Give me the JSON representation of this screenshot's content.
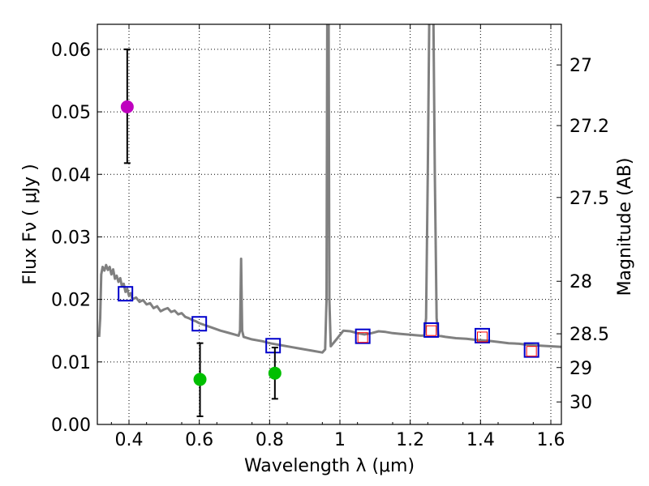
{
  "chart_data": {
    "type": "scatter",
    "xlabel": "Wavelength  λ (μm)",
    "ylabel": "Flux  Fν  ( μJy )",
    "ylabel_right": "Magnitude (AB)",
    "xlim": [
      0.31,
      1.63
    ],
    "ylim": [
      0.0,
      0.064
    ],
    "x_ticks": [
      0.4,
      0.6,
      0.8,
      1.0,
      1.2,
      1.4,
      1.6
    ],
    "x_tick_labels": [
      "0.4",
      "0.6",
      "0.8",
      "1",
      "1.2",
      "1.4",
      "1.6"
    ],
    "y_ticks": [
      0.0,
      0.01,
      0.02,
      0.03,
      0.04,
      0.05,
      0.06
    ],
    "y_tick_labels": [
      "0.00",
      "0.01",
      "0.02",
      "0.03",
      "0.04",
      "0.05",
      "0.06"
    ],
    "right_ticks": [
      {
        "label": "27",
        "flux": 0.0575
      },
      {
        "label": "27.2",
        "flux": 0.0478
      },
      {
        "label": "27.5",
        "flux": 0.0363
      },
      {
        "label": "28",
        "flux": 0.0229
      },
      {
        "label": "28.5",
        "flux": 0.0145
      },
      {
        "label": "29",
        "flux": 0.0091
      },
      {
        "label": "30",
        "flux": 0.0036
      }
    ],
    "grid": true,
    "colors": {
      "template": "#808080",
      "magenta": "#bf00bf",
      "green": "#00bf00",
      "blue": "#0000cc",
      "red": "#ff0000",
      "errorbar": "#000000"
    },
    "template_spectrum": {
      "name": "model SED",
      "points": [
        [
          0.315,
          0.014
        ],
        [
          0.318,
          0.017
        ],
        [
          0.321,
          0.024
        ],
        [
          0.325,
          0.0252
        ],
        [
          0.33,
          0.0246
        ],
        [
          0.335,
          0.0255
        ],
        [
          0.34,
          0.0247
        ],
        [
          0.345,
          0.0252
        ],
        [
          0.35,
          0.024
        ],
        [
          0.355,
          0.0248
        ],
        [
          0.36,
          0.0233
        ],
        [
          0.365,
          0.0238
        ],
        [
          0.37,
          0.0228
        ],
        [
          0.375,
          0.0234
        ],
        [
          0.38,
          0.0221
        ],
        [
          0.385,
          0.0225
        ],
        [
          0.39,
          0.0212
        ],
        [
          0.395,
          0.0217
        ],
        [
          0.4,
          0.0206
        ],
        [
          0.405,
          0.021
        ],
        [
          0.41,
          0.02
        ],
        [
          0.42,
          0.0203
        ],
        [
          0.43,
          0.0196
        ],
        [
          0.44,
          0.0199
        ],
        [
          0.45,
          0.0192
        ],
        [
          0.46,
          0.0194
        ],
        [
          0.47,
          0.0186
        ],
        [
          0.48,
          0.0189
        ],
        [
          0.49,
          0.0181
        ],
        [
          0.5,
          0.0184
        ],
        [
          0.51,
          0.0186
        ],
        [
          0.52,
          0.018
        ],
        [
          0.53,
          0.0182
        ],
        [
          0.54,
          0.0176
        ],
        [
          0.55,
          0.0178
        ],
        [
          0.56,
          0.0172
        ],
        [
          0.57,
          0.017
        ],
        [
          0.58,
          0.0167
        ],
        [
          0.59,
          0.0165
        ],
        [
          0.6,
          0.0162
        ],
        [
          0.62,
          0.0158
        ],
        [
          0.64,
          0.0154
        ],
        [
          0.66,
          0.015
        ],
        [
          0.68,
          0.0147
        ],
        [
          0.7,
          0.0144
        ],
        [
          0.712,
          0.0142
        ],
        [
          0.716,
          0.015
        ],
        [
          0.719,
          0.0265
        ],
        [
          0.722,
          0.015
        ],
        [
          0.726,
          0.014
        ],
        [
          0.75,
          0.0136
        ],
        [
          0.78,
          0.0133
        ],
        [
          0.8,
          0.013
        ],
        [
          0.83,
          0.0127
        ],
        [
          0.86,
          0.0124
        ],
        [
          0.89,
          0.0121
        ],
        [
          0.92,
          0.0118
        ],
        [
          0.95,
          0.0115
        ],
        [
          0.958,
          0.012
        ],
        [
          0.962,
          0.02
        ],
        [
          0.964,
          0.0645
        ],
        [
          0.968,
          0.0645
        ],
        [
          0.97,
          0.02
        ],
        [
          0.974,
          0.0125
        ],
        [
          0.99,
          0.0136
        ],
        [
          1.01,
          0.015
        ],
        [
          1.03,
          0.0149
        ],
        [
          1.05,
          0.0146
        ],
        [
          1.07,
          0.0144
        ],
        [
          1.09,
          0.0146
        ],
        [
          1.11,
          0.0149
        ],
        [
          1.13,
          0.0148
        ],
        [
          1.15,
          0.0146
        ],
        [
          1.17,
          0.0145
        ],
        [
          1.19,
          0.0144
        ],
        [
          1.21,
          0.0143
        ],
        [
          1.23,
          0.0142
        ],
        [
          1.24,
          0.0142
        ],
        [
          1.245,
          0.017
        ],
        [
          1.25,
          0.04
        ],
        [
          1.254,
          0.0645
        ],
        [
          1.266,
          0.0645
        ],
        [
          1.27,
          0.04
        ],
        [
          1.275,
          0.017
        ],
        [
          1.28,
          0.0142
        ],
        [
          1.3,
          0.014
        ],
        [
          1.33,
          0.0138
        ],
        [
          1.36,
          0.0137
        ],
        [
          1.39,
          0.0135
        ],
        [
          1.42,
          0.0134
        ],
        [
          1.45,
          0.0132
        ],
        [
          1.48,
          0.013
        ],
        [
          1.51,
          0.0129
        ],
        [
          1.54,
          0.0127
        ],
        [
          1.57,
          0.0126
        ],
        [
          1.6,
          0.0125
        ],
        [
          1.63,
          0.0124
        ]
      ]
    },
    "measurements": [
      {
        "name": "magenta point",
        "x": 0.395,
        "y": 0.0508,
        "y_low": 0.0418,
        "y_high": 0.06,
        "color": "#bf00bf"
      },
      {
        "name": "green point 0.6",
        "x": 0.602,
        "y": 0.0072,
        "y_low": 0.0013,
        "y_high": 0.013,
        "color": "#00bf00"
      },
      {
        "name": "green point 0.81",
        "x": 0.815,
        "y": 0.0082,
        "y_low": 0.0041,
        "y_high": 0.0123,
        "color": "#00bf00"
      }
    ],
    "model_bandpass": {
      "name": "template band fluxes",
      "points": [
        [
          0.39,
          0.0209
        ],
        [
          0.6,
          0.0161
        ],
        [
          0.81,
          0.0126
        ],
        [
          1.065,
          0.0141
        ],
        [
          1.26,
          0.0151
        ],
        [
          1.405,
          0.0142
        ],
        [
          1.545,
          0.0119
        ]
      ]
    },
    "model_detected": {
      "name": "detected bands",
      "points": [
        [
          1.065,
          0.0139
        ],
        [
          1.26,
          0.015
        ],
        [
          1.405,
          0.014
        ],
        [
          1.545,
          0.0117
        ]
      ]
    }
  }
}
